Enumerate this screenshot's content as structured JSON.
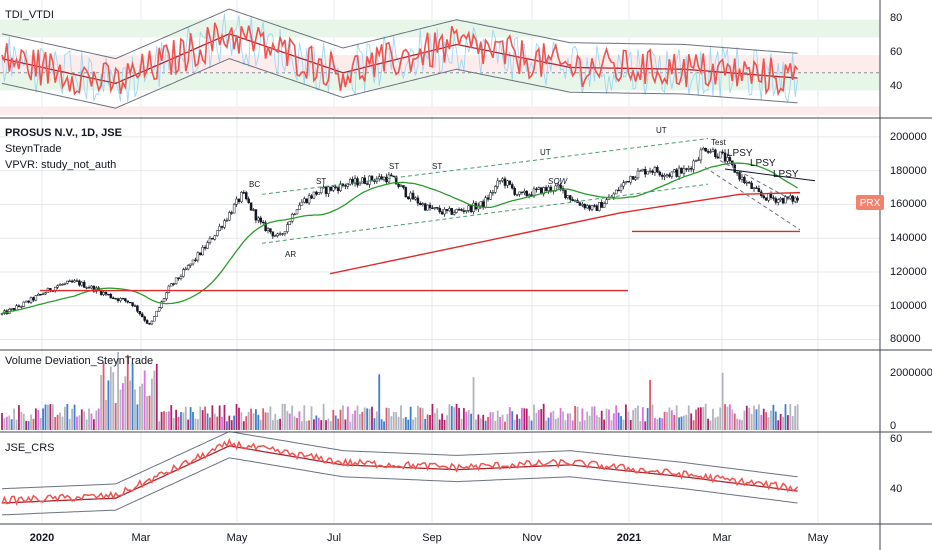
{
  "colors": {
    "bull": "#26a69a",
    "bear": "#ef5350",
    "candle": "#131722",
    "ma_green": "#2e9b2e",
    "red_line": "#e02a2a",
    "grid": "#e6e8ee",
    "separator": "#434651",
    "tdi_bg_green": "#e8f5e9",
    "tdi_bg_red": "#fdecec",
    "badge": "#f0836d"
  },
  "x_axis": {
    "ticks": [
      "2020",
      "Mar",
      "May",
      "Jul",
      "Sep",
      "Nov",
      "2021",
      "Mar",
      "May"
    ]
  },
  "panes": {
    "tdi": {
      "title": "TDI_VTDI",
      "ticks": [
        "80",
        "60",
        "40"
      ]
    },
    "price": {
      "title": "PROSUS N.V., 1D, JSE",
      "line2": "SteynTrade",
      "line3": "VPVR: study_not_auth",
      "ticks": [
        "200000",
        "180000",
        "160000",
        "140000",
        "120000",
        "100000",
        "80000"
      ],
      "badge": "PRX",
      "annotations": [
        "BC",
        "ST",
        "ST",
        "ST",
        "AR",
        "UT",
        "SOW",
        "UT",
        "Test",
        "LPSY",
        "LPSY",
        "LPSY"
      ]
    },
    "volume": {
      "title": "Volume Deviation_SteynTrade",
      "ticks": [
        "2000000",
        "0"
      ]
    },
    "crs": {
      "title": "JSE_CRS",
      "ticks": [
        "60",
        "40"
      ]
    }
  },
  "chart_data": [
    {
      "type": "line",
      "name": "TDI_VTDI",
      "x": [
        "2020-01",
        "2020-03",
        "2020-05",
        "2020-07",
        "2020-09",
        "2020-11",
        "2021-01",
        "2021-03"
      ],
      "series": [
        {
          "name": "",
          "values": [
            58,
            44,
            72,
            50,
            66,
            53,
            52,
            47
          ]
        }
      ],
      "ylim": [
        25,
        90
      ],
      "bands": [
        80,
        70,
        60,
        50,
        40
      ]
    },
    {
      "type": "candlestick",
      "name": "PROSUS N.V., 1D, JSE",
      "x": [
        "2019-12-20",
        "2021-03-26"
      ],
      "ylim": [
        75000,
        210000
      ],
      "levels": [
        {
          "from": "2020-02",
          "to": "2020-12",
          "value": 109000
        },
        {
          "from": "2020-12-30",
          "to": "2021-03-26",
          "value": 144000
        }
      ],
      "price_path": [
        95000,
        100000,
        106000,
        112000,
        114000,
        110000,
        105000,
        102000,
        88000,
        110000,
        122000,
        135000,
        150000,
        166000,
        148000,
        140000,
        160000,
        167000,
        170000,
        173000,
        175000,
        176000,
        165000,
        158000,
        155000,
        157000,
        160000,
        175000,
        165000,
        168000,
        170000,
        162000,
        157000,
        165000,
        177000,
        181000,
        178000,
        180000,
        194000,
        188000,
        175000,
        165000,
        163000,
        163000
      ]
    },
    {
      "type": "bar",
      "name": "Volume Deviation_SteynTrade",
      "ylim": [
        0,
        2800000
      ],
      "peak_values": [
        2800000,
        2000000,
        1800000
      ]
    },
    {
      "type": "line",
      "name": "JSE_CRS",
      "x": [
        "2019-12",
        "2020-03",
        "2020-05",
        "2020-07",
        "2020-09",
        "2020-11",
        "2021-01",
        "2021-03"
      ],
      "series": [
        {
          "name": "",
          "values": [
            34,
            36,
            58,
            50,
            48,
            50,
            45,
            39
          ]
        }
      ],
      "ylim": [
        25,
        62
      ]
    }
  ]
}
